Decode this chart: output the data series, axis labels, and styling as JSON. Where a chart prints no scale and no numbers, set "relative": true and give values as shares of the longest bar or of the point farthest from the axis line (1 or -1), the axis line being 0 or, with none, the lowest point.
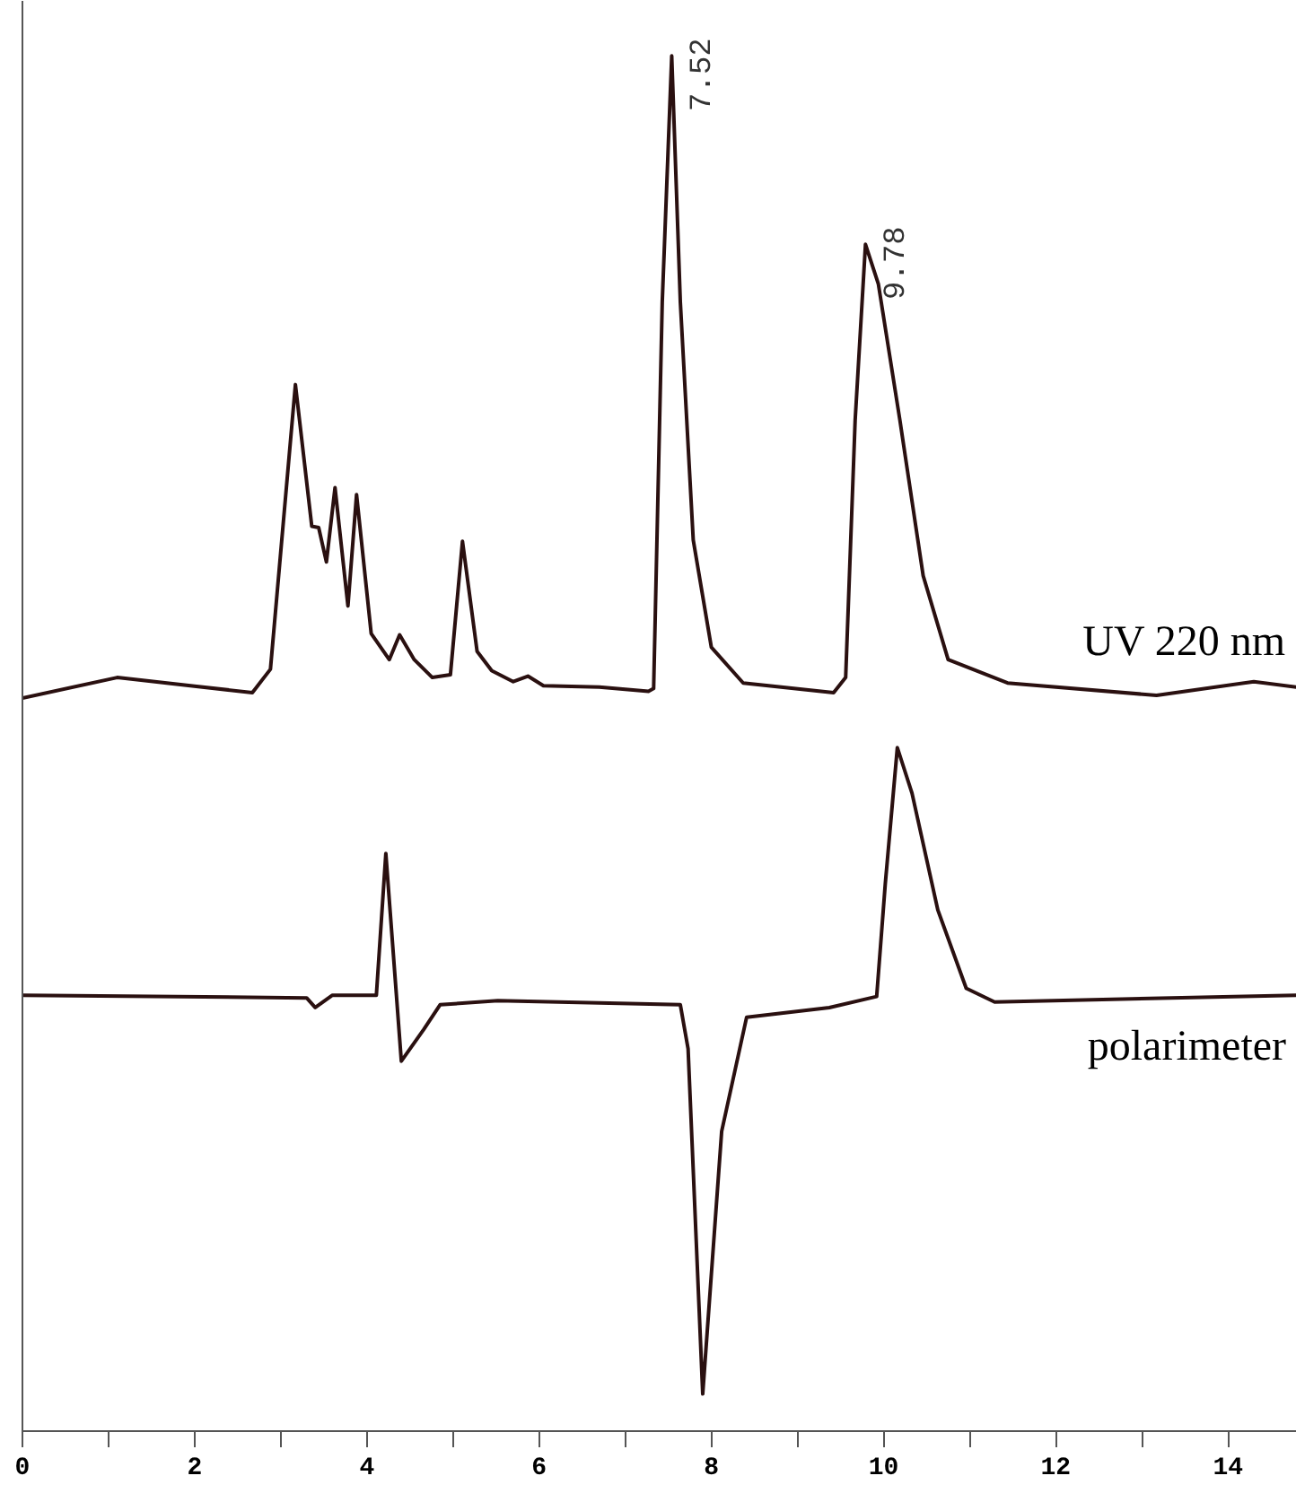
{
  "chart_data": {
    "type": "line",
    "relative": true,
    "grid": false,
    "marker": "none",
    "line_style": "solid",
    "xlim": [
      0,
      14.8
    ],
    "xticks": [
      0,
      {
        "value": 1,
        "label": null
      },
      2,
      {
        "value": 3,
        "label": null
      },
      4,
      {
        "value": 5,
        "label": null
      },
      6,
      {
        "value": 7,
        "label": null
      },
      8,
      {
        "value": 9,
        "label": null
      },
      10,
      {
        "value": 11,
        "label": null
      },
      12,
      {
        "value": 13,
        "label": null
      },
      14
    ],
    "annotations": [
      {
        "text": "7.52",
        "x": 7.52,
        "y": 1.0
      },
      {
        "text": "9.78",
        "x": 9.78,
        "y": 0.863
      }
    ],
    "series": [
      {
        "name": "UV 220 nm",
        "color": "#2a1010",
        "x": [
          0,
          1.1,
          2.67,
          2.88,
          3.17,
          3.36,
          3.44,
          3.53,
          3.63,
          3.78,
          3.88,
          4.05,
          4.26,
          4.38,
          4.55,
          4.76,
          4.97,
          5.11,
          5.28,
          5.45,
          5.7,
          5.87,
          6.05,
          6.7,
          7.27,
          7.33,
          7.43,
          7.54,
          7.64,
          7.79,
          8.0,
          8.37,
          9.42,
          9.56,
          9.67,
          9.79,
          9.94,
          10.19,
          10.46,
          10.75,
          11.44,
          13.17,
          14.3,
          14.8
        ],
        "values": [
          0.533,
          0.548,
          0.537,
          0.554,
          0.761,
          0.658,
          0.657,
          0.632,
          0.686,
          0.6,
          0.681,
          0.58,
          0.561,
          0.579,
          0.561,
          0.548,
          0.55,
          0.647,
          0.567,
          0.553,
          0.545,
          0.549,
          0.542,
          0.541,
          0.538,
          0.54,
          0.821,
          1.0,
          0.821,
          0.648,
          0.57,
          0.544,
          0.537,
          0.548,
          0.735,
          0.863,
          0.834,
          0.735,
          0.622,
          0.561,
          0.544,
          0.535,
          0.545,
          0.541
        ]
      },
      {
        "name": "polarimeter",
        "color": "#2a1010",
        "x": [
          0,
          3.3,
          3.4,
          3.6,
          4.11,
          4.22,
          4.4,
          4.66,
          4.85,
          5.52,
          7.64,
          7.73,
          7.9,
          8.12,
          8.41,
          9.37,
          9.92,
          10.02,
          10.16,
          10.33,
          10.63,
          10.96,
          11.29,
          14.8
        ],
        "values": [
          0.317,
          0.315,
          0.308,
          0.317,
          0.317,
          0.42,
          0.269,
          0.292,
          0.31,
          0.313,
          0.31,
          0.278,
          0.027,
          0.218,
          0.301,
          0.308,
          0.316,
          0.398,
          0.497,
          0.464,
          0.379,
          0.322,
          0.312,
          0.317
        ]
      }
    ]
  }
}
